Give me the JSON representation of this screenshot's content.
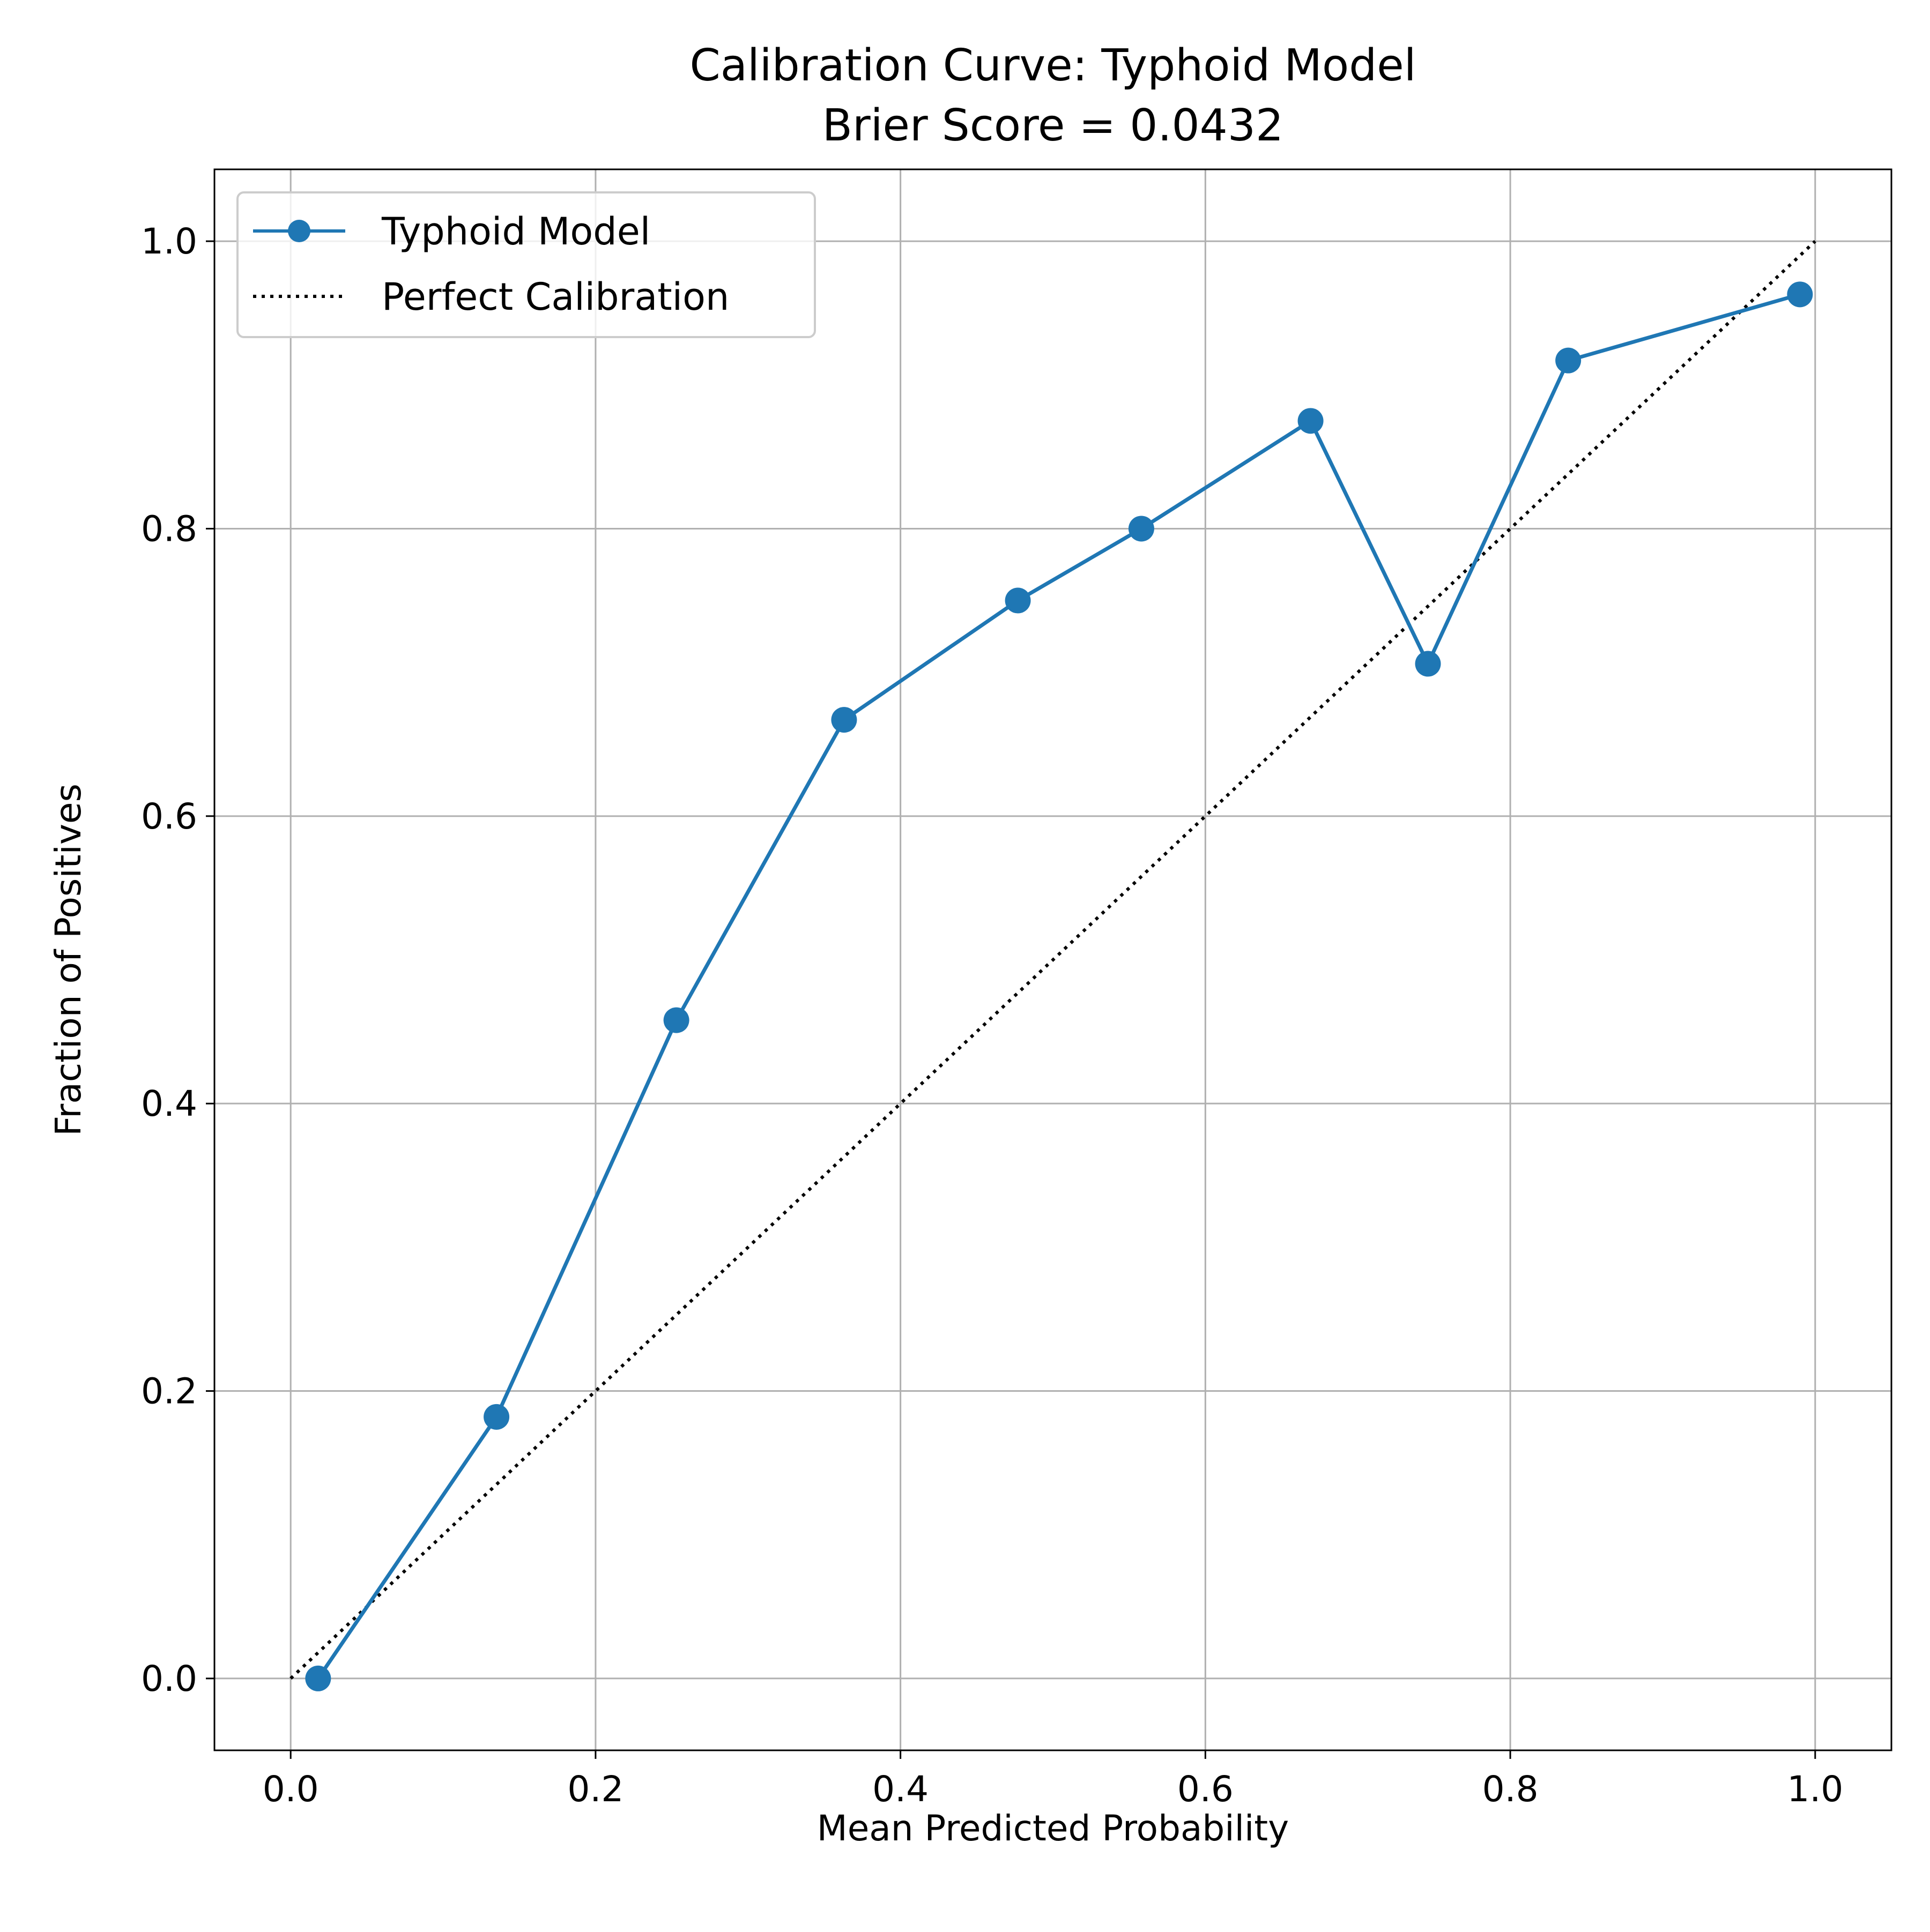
{
  "chart_data": {
    "type": "line",
    "title": "Calibration Curve: Typhoid Model",
    "subtitle": "Brier Score = 0.0432",
    "xlabel": "Mean Predicted Probability",
    "ylabel": "Fraction of Positives",
    "xlim": [
      -0.05,
      1.05
    ],
    "ylim": [
      -0.05,
      1.05
    ],
    "xticks": [
      0.0,
      0.2,
      0.4,
      0.6,
      0.8,
      1.0
    ],
    "yticks": [
      0.0,
      0.2,
      0.4,
      0.6,
      0.8,
      1.0
    ],
    "xtick_labels": [
      "0.0",
      "0.2",
      "0.4",
      "0.6",
      "0.8",
      "1.0"
    ],
    "ytick_labels": [
      "0.0",
      "0.2",
      "0.4",
      "0.6",
      "0.8",
      "1.0"
    ],
    "grid": true,
    "legend_position": "upper-left",
    "series": [
      {
        "name": "Typhoid Model",
        "color": "#1f77b4",
        "style": "solid-with-markers",
        "x": [
          0.018,
          0.135,
          0.253,
          0.363,
          0.477,
          0.558,
          0.669,
          0.746,
          0.838,
          0.99
        ],
        "y": [
          0.0,
          0.182,
          0.458,
          0.667,
          0.75,
          0.8,
          0.875,
          0.706,
          0.917,
          0.963
        ]
      },
      {
        "name": "Perfect Calibration",
        "color": "#000000",
        "style": "dotted",
        "x": [
          0.0,
          1.0
        ],
        "y": [
          0.0,
          1.0
        ]
      }
    ]
  }
}
